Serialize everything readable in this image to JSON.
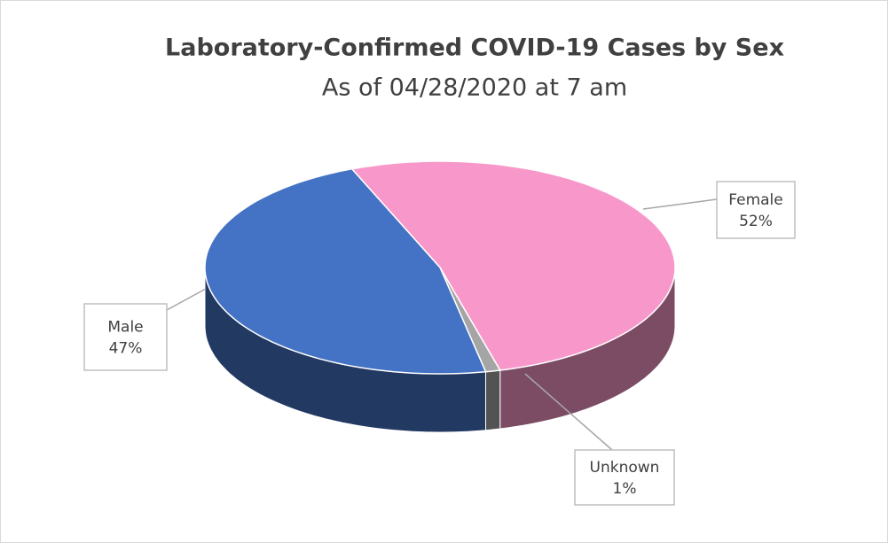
{
  "chart_data": {
    "type": "pie",
    "title": "Laboratory-Confirmed COVID-19 Cases by Sex",
    "subtitle": "As of 04/28/2020 at 7 am",
    "categories": [
      "Female",
      "Unknown",
      "Male"
    ],
    "values": [
      52,
      1,
      47
    ],
    "value_labels": [
      "52%",
      "1%",
      "47%"
    ],
    "colors": [
      "#f898ca",
      "#a5a5a5",
      "#4472c4"
    ]
  }
}
